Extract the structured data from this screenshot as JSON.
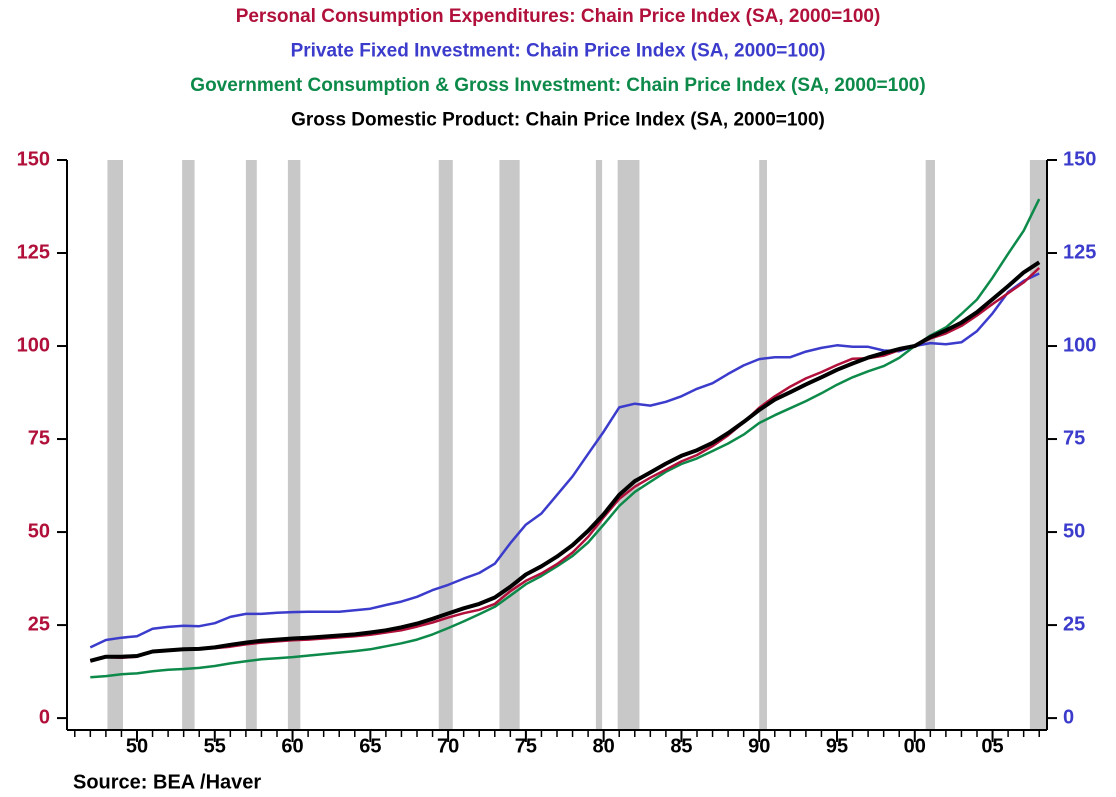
{
  "chart_data": {
    "type": "line",
    "titles": [
      {
        "text": "Personal Consumption Expenditures: Chain Price Index (SA, 2000=100)",
        "color": "#b0103a"
      },
      {
        "text": "Private Fixed Investment: Chain Price Index (SA, 2000=100)",
        "color": "#3b3bcc"
      },
      {
        "text": "Government Consumption & Gross Investment: Chain Price Index (SA, 2000=100)",
        "color": "#0d8a4a"
      },
      {
        "text": "Gross Domestic Product: Chain Price Index (SA, 2000=100)",
        "color": "#000000"
      }
    ],
    "source": "Source:  BEA /Haver",
    "x": [
      1947,
      1948,
      1949,
      1950,
      1951,
      1952,
      1953,
      1954,
      1955,
      1956,
      1957,
      1958,
      1959,
      1960,
      1961,
      1962,
      1963,
      1964,
      1965,
      1966,
      1967,
      1968,
      1969,
      1970,
      1971,
      1972,
      1973,
      1974,
      1975,
      1976,
      1977,
      1978,
      1979,
      1980,
      1981,
      1982,
      1983,
      1984,
      1985,
      1986,
      1987,
      1988,
      1989,
      1990,
      1991,
      1992,
      1993,
      1994,
      1995,
      1996,
      1997,
      1998,
      1999,
      2000,
      2001,
      2002,
      2003,
      2004,
      2005,
      2006,
      2007,
      2008
    ],
    "series": [
      {
        "name": "Government Consumption & Gross Investment",
        "color": "#0d8a4a",
        "width": 2.5,
        "values": [
          11,
          11.3,
          11.8,
          12,
          12.6,
          13,
          13.2,
          13.5,
          14,
          14.7,
          15.3,
          15.8,
          16.1,
          16.4,
          16.8,
          17.2,
          17.6,
          18,
          18.5,
          19.3,
          20.1,
          21.1,
          22.5,
          24.2,
          26,
          27.9,
          29.9,
          32.9,
          36,
          38.2,
          40.8,
          43.6,
          47.2,
          52,
          57,
          60.8,
          63.5,
          66.2,
          68.3,
          69.8,
          71.8,
          73.8,
          76.2,
          79.3,
          81.4,
          83.3,
          85.2,
          87.3,
          89.6,
          91.6,
          93.2,
          94.6,
          96.8,
          100,
          102.8,
          105,
          108.6,
          112.5,
          118.4,
          124.8,
          131,
          139.5
        ]
      },
      {
        "name": "Private Fixed Investment",
        "color": "#3b3bcc",
        "width": 2.5,
        "axis": "y2",
        "values": [
          19,
          21,
          21.6,
          22,
          24,
          24.5,
          24.8,
          24.7,
          25.5,
          27.2,
          28,
          28,
          28.3,
          28.5,
          28.6,
          28.6,
          28.6,
          29,
          29.4,
          30.4,
          31.3,
          32.6,
          34.4,
          35.8,
          37.5,
          39,
          41.5,
          47,
          52,
          55,
          60,
          65,
          71,
          77,
          83.5,
          84.5,
          84,
          85,
          86.5,
          88.5,
          90,
          92.5,
          94.8,
          96.5,
          97,
          97,
          98.5,
          99.5,
          100.2,
          99.8,
          99.8,
          98.8,
          98.6,
          100,
          100.8,
          100.5,
          101,
          104,
          108.8,
          114.5,
          117.5,
          119.5
        ]
      },
      {
        "name": "Personal Consumption Expenditures",
        "color": "#b0103a",
        "width": 2.5,
        "values": [
          15.3,
          16.4,
          16.2,
          16.5,
          17.8,
          18.2,
          18.5,
          18.6,
          18.8,
          19.2,
          19.8,
          20.3,
          20.6,
          20.9,
          21.1,
          21.4,
          21.7,
          22,
          22.4,
          23,
          23.6,
          24.6,
          25.7,
          27,
          28.2,
          29.1,
          30.7,
          34.1,
          36.9,
          38.9,
          41.4,
          44.5,
          48.7,
          54,
          58.9,
          62.2,
          64.6,
          66.8,
          69,
          70.7,
          73.1,
          76,
          79.5,
          83.4,
          86.5,
          89.1,
          91.3,
          93,
          94.9,
          96.6,
          96.7,
          97.4,
          98.9,
          100,
          102,
          103.4,
          105.4,
          108.2,
          111.3,
          114.2,
          117.1,
          121
        ]
      },
      {
        "name": "Gross Domestic Product",
        "color": "#000000",
        "width": 4,
        "values": [
          15.4,
          16.5,
          16.5,
          16.7,
          17.9,
          18.2,
          18.5,
          18.6,
          19,
          19.7,
          20.3,
          20.8,
          21.1,
          21.4,
          21.6,
          21.9,
          22.2,
          22.5,
          23,
          23.6,
          24.4,
          25.4,
          26.7,
          28.1,
          29.5,
          30.7,
          32.4,
          35.3,
          38.6,
          40.8,
          43.4,
          46.5,
          50.3,
          54.8,
          60,
          63.7,
          66,
          68.4,
          70.5,
          72,
          74,
          76.6,
          79.6,
          82.8,
          85.6,
          87.6,
          89.7,
          91.6,
          93.6,
          95.3,
          96.9,
          98.1,
          99.2,
          100,
          102.4,
          104.2,
          106.3,
          109.1,
          112.6,
          116.1,
          119.8,
          122.5
        ]
      }
    ],
    "recessions": [
      [
        1948.1,
        1949.1
      ],
      [
        1952.9,
        1953.7
      ],
      [
        1957.0,
        1957.7
      ],
      [
        1959.7,
        1960.5
      ],
      [
        1969.4,
        1970.3
      ],
      [
        1973.3,
        1974.6
      ],
      [
        1979.5,
        1979.9
      ],
      [
        1980.9,
        1982.3
      ],
      [
        1990.0,
        1990.5
      ],
      [
        2000.7,
        2001.3
      ],
      [
        2007.4,
        2008.5
      ]
    ],
    "recession_color": "#c8c8c8",
    "xlim": [
      1945.5,
      2008.5
    ],
    "xticks": [
      {
        "value": 1950,
        "label": "50"
      },
      {
        "value": 1955,
        "label": "55"
      },
      {
        "value": 1960,
        "label": "60"
      },
      {
        "value": 1965,
        "label": "65"
      },
      {
        "value": 1970,
        "label": "70"
      },
      {
        "value": 1975,
        "label": "75"
      },
      {
        "value": 1980,
        "label": "80"
      },
      {
        "value": 1985,
        "label": "85"
      },
      {
        "value": 1990,
        "label": "90"
      },
      {
        "value": 1995,
        "label": "95"
      },
      {
        "value": 2000,
        "label": "00"
      },
      {
        "value": 2005,
        "label": "05"
      }
    ],
    "ylim": [
      -3.2,
      150
    ],
    "yticks": [
      0,
      25,
      50,
      75,
      100,
      125,
      150
    ],
    "ytick_color": "#b0103a",
    "y2lim": [
      -3.2,
      150
    ],
    "y2ticks": [
      0,
      25,
      50,
      75,
      100,
      125,
      150
    ],
    "y2tick_color": "#3b3bcc"
  }
}
